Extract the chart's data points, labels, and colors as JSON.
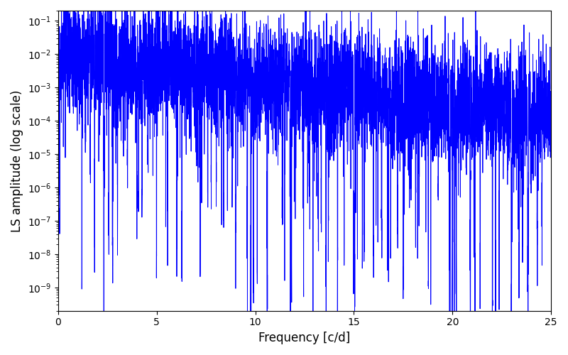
{
  "line_color": "#0000ff",
  "line_width": 0.7,
  "xlabel": "Frequency [c/d]",
  "ylabel": "LS amplitude (log scale)",
  "xlim": [
    0,
    25
  ],
  "ylim_log": [
    2e-10,
    0.2
  ],
  "yscale": "log",
  "background_color": "#ffffff",
  "freq_max": 25.0,
  "n_points": 6000,
  "seed": 17,
  "title": ""
}
